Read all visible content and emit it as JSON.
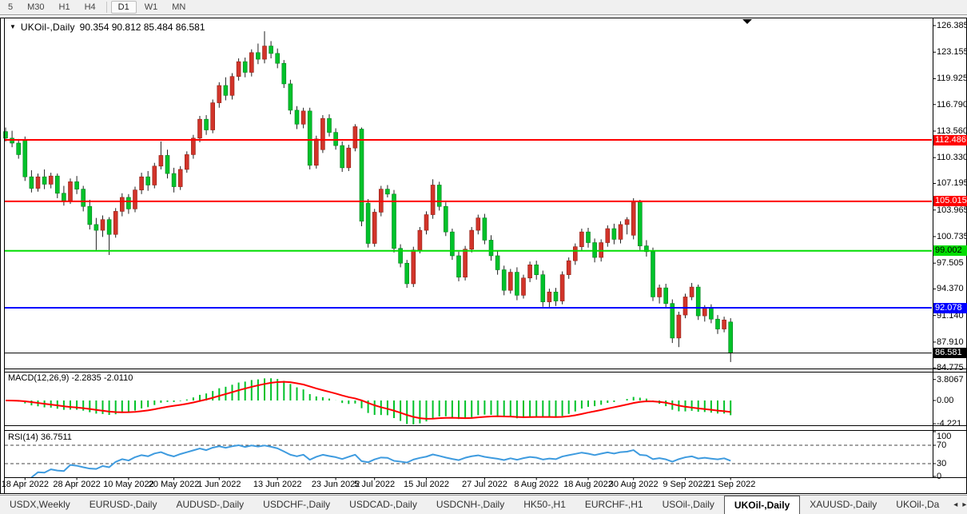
{
  "toolbar": {
    "timeframes": [
      "5",
      "M30",
      "H1",
      "H4",
      "D1",
      "W1",
      "MN"
    ],
    "active_timeframe": "D1"
  },
  "chart": {
    "collapse_icon": "▼",
    "symbol_label": "UKOil-,Daily",
    "ohlc_label": "90.354 90.812 85.484 86.581"
  },
  "chart_data": {
    "type": "candlestick",
    "symbol": "UKOil-,Daily",
    "timeframe": "Daily",
    "ohlc_current": {
      "open": "90.354",
      "high": "90.812",
      "low": "85.484",
      "close": "86.581"
    },
    "up_color": "#d2342a",
    "down_color": "#00c22a",
    "price_axis_ticks": [
      "126.385",
      "123.155",
      "119.925",
      "116.790",
      "113.560",
      "110.330",
      "107.195",
      "103.965",
      "100.735",
      "97.505",
      "94.370",
      "91.140",
      "87.910",
      "84.775"
    ],
    "hlines": [
      {
        "price": 112.486,
        "label": "112.486",
        "color": "#ff0000",
        "text_color": "#ffffff",
        "width": 2
      },
      {
        "price": 105.015,
        "label": "105.015",
        "color": "#ff0000",
        "text_color": "#ffffff",
        "width": 2
      },
      {
        "price": 99.002,
        "label": "99.002",
        "color": "#00dd00",
        "text_color": "#000000",
        "width": 2
      },
      {
        "price": 92.078,
        "label": "92.078",
        "color": "#0000ff",
        "text_color": "#ffffff",
        "width": 2
      },
      {
        "price": 86.581,
        "label": "86.581",
        "color": "#000000",
        "text_color": "#ffffff",
        "width": 1
      }
    ],
    "date_ticks": [
      {
        "label": "18 Apr 2022",
        "index": 3
      },
      {
        "label": "28 Apr 2022",
        "index": 11
      },
      {
        "label": "10 May 2022",
        "index": 19
      },
      {
        "label": "20 May 2022",
        "index": 26
      },
      {
        "label": "1 Jun 2022",
        "index": 33
      },
      {
        "label": "13 Jun 2022",
        "index": 42
      },
      {
        "label": "23 Jun 2022",
        "index": 51
      },
      {
        "label": "5 Jul 2022",
        "index": 57
      },
      {
        "label": "15 Jul 2022",
        "index": 65
      },
      {
        "label": "27 Jul 2022",
        "index": 74
      },
      {
        "label": "8 Aug 2022",
        "index": 82
      },
      {
        "label": "18 Aug 2022",
        "index": 90
      },
      {
        "label": "30 Aug 2022",
        "index": 97
      },
      {
        "label": "9 Sep 2022",
        "index": 105
      },
      {
        "label": "21 Sep 2022",
        "index": 112
      }
    ],
    "candles": [
      [
        113.5,
        114.0,
        112.3,
        112.7
      ],
      [
        112.7,
        113.6,
        111.6,
        112.1
      ],
      [
        112.1,
        112.6,
        110.2,
        110.7
      ],
      [
        112.4,
        112.9,
        107.5,
        108.0
      ],
      [
        108.0,
        108.8,
        106.1,
        106.6
      ],
      [
        106.6,
        108.4,
        106.2,
        108.0
      ],
      [
        108.0,
        108.9,
        106.5,
        107.1
      ],
      [
        107.1,
        108.5,
        106.6,
        108.1
      ],
      [
        108.1,
        108.4,
        105.4,
        106.0
      ],
      [
        106.0,
        106.9,
        104.5,
        105.1
      ],
      [
        105.1,
        107.8,
        104.7,
        107.4
      ],
      [
        107.4,
        108.1,
        105.9,
        106.5
      ],
      [
        106.5,
        106.9,
        103.8,
        104.4
      ],
      [
        104.4,
        105.2,
        101.6,
        102.2
      ],
      [
        102.2,
        103.0,
        99.1,
        101.5
      ],
      [
        101.5,
        103.3,
        100.7,
        102.8
      ],
      [
        102.8,
        103.1,
        98.5,
        101.0
      ],
      [
        101.0,
        104.2,
        100.6,
        103.8
      ],
      [
        103.8,
        106.0,
        103.2,
        105.5
      ],
      [
        105.5,
        105.9,
        103.5,
        104.1
      ],
      [
        104.1,
        106.8,
        103.7,
        106.4
      ],
      [
        106.4,
        108.5,
        105.9,
        108.0
      ],
      [
        108.0,
        108.7,
        106.3,
        107.0
      ],
      [
        107.0,
        109.7,
        106.6,
        109.3
      ],
      [
        109.3,
        112.3,
        108.9,
        110.6
      ],
      [
        110.6,
        111.3,
        107.8,
        108.4
      ],
      [
        108.4,
        109.1,
        106.1,
        106.8
      ],
      [
        106.8,
        109.3,
        106.4,
        108.9
      ],
      [
        108.9,
        111.1,
        108.5,
        110.7
      ],
      [
        110.7,
        113.1,
        110.2,
        112.7
      ],
      [
        112.7,
        115.4,
        112.2,
        115.0
      ],
      [
        115.0,
        115.5,
        113.1,
        113.7
      ],
      [
        113.7,
        117.4,
        113.3,
        117.0
      ],
      [
        117.0,
        119.5,
        116.4,
        119.1
      ],
      [
        119.1,
        120.1,
        117.3,
        117.9
      ],
      [
        117.9,
        120.6,
        117.4,
        120.2
      ],
      [
        120.2,
        122.4,
        119.7,
        122.0
      ],
      [
        122.0,
        122.5,
        120.1,
        120.7
      ],
      [
        120.7,
        123.5,
        120.2,
        123.1
      ],
      [
        123.1,
        124.2,
        121.7,
        122.3
      ],
      [
        122.3,
        125.7,
        121.8,
        123.9
      ],
      [
        123.9,
        124.5,
        122.4,
        123.0
      ],
      [
        123.0,
        123.6,
        121.2,
        121.8
      ],
      [
        121.8,
        122.2,
        118.8,
        119.3
      ],
      [
        119.3,
        119.8,
        115.6,
        116.1
      ],
      [
        116.1,
        116.6,
        113.8,
        114.4
      ],
      [
        114.4,
        116.4,
        113.9,
        116.0
      ],
      [
        116.0,
        116.4,
        108.9,
        109.4
      ],
      [
        109.4,
        113.0,
        109.0,
        112.6
      ],
      [
        111.3,
        115.5,
        110.9,
        115.1
      ],
      [
        115.1,
        115.6,
        112.9,
        113.4
      ],
      [
        113.4,
        113.9,
        111.3,
        111.8
      ],
      [
        111.8,
        112.3,
        108.6,
        109.1
      ],
      [
        109.1,
        111.9,
        108.7,
        111.5
      ],
      [
        111.5,
        114.4,
        111.1,
        114.1
      ],
      [
        113.8,
        114.0,
        102.0,
        102.6
      ],
      [
        104.8,
        105.3,
        99.4,
        99.9
      ],
      [
        99.9,
        104.1,
        99.5,
        103.7
      ],
      [
        103.7,
        106.9,
        103.2,
        106.5
      ],
      [
        106.5,
        107.0,
        105.5,
        105.9
      ],
      [
        105.9,
        106.4,
        98.8,
        99.3
      ],
      [
        99.3,
        99.8,
        97.0,
        97.5
      ],
      [
        97.5,
        97.9,
        94.5,
        95.0
      ],
      [
        95.0,
        99.5,
        94.6,
        99.1
      ],
      [
        99.1,
        101.9,
        98.7,
        101.5
      ],
      [
        101.5,
        103.8,
        101.0,
        103.4
      ],
      [
        103.4,
        107.7,
        102.9,
        107.0
      ],
      [
        107.0,
        107.4,
        103.9,
        104.4
      ],
      [
        104.4,
        104.9,
        100.8,
        101.3
      ],
      [
        101.3,
        101.7,
        97.9,
        98.4
      ],
      [
        98.4,
        98.9,
        95.3,
        95.8
      ],
      [
        95.8,
        99.6,
        95.4,
        99.2
      ],
      [
        99.2,
        101.9,
        98.8,
        101.5
      ],
      [
        101.5,
        103.4,
        101.0,
        103.0
      ],
      [
        103.0,
        103.5,
        99.8,
        100.3
      ],
      [
        100.3,
        100.9,
        97.8,
        98.4
      ],
      [
        98.4,
        99.0,
        96.1,
        96.7
      ],
      [
        96.7,
        97.2,
        93.6,
        94.2
      ],
      [
        94.2,
        96.8,
        93.8,
        96.4
      ],
      [
        96.4,
        97.0,
        93.0,
        93.6
      ],
      [
        93.6,
        96.1,
        93.2,
        95.7
      ],
      [
        95.7,
        97.7,
        95.2,
        97.3
      ],
      [
        97.3,
        97.8,
        95.5,
        96.1
      ],
      [
        96.1,
        96.6,
        92.2,
        92.8
      ],
      [
        92.8,
        94.4,
        92.1,
        94.0
      ],
      [
        94.0,
        94.5,
        92.3,
        92.9
      ],
      [
        92.9,
        96.5,
        92.5,
        96.1
      ],
      [
        96.1,
        98.2,
        95.6,
        97.8
      ],
      [
        97.8,
        99.9,
        97.3,
        99.5
      ],
      [
        99.5,
        101.7,
        99.0,
        101.3
      ],
      [
        101.3,
        101.8,
        99.4,
        100.0
      ],
      [
        100.0,
        100.5,
        97.6,
        98.2
      ],
      [
        98.2,
        100.4,
        97.7,
        100.0
      ],
      [
        100.0,
        102.1,
        99.5,
        101.7
      ],
      [
        101.7,
        102.3,
        99.8,
        100.4
      ],
      [
        100.4,
        102.6,
        99.9,
        102.2
      ],
      [
        102.2,
        103.1,
        101.0,
        102.8
      ],
      [
        100.9,
        105.4,
        100.4,
        104.9
      ],
      [
        104.9,
        105.2,
        99.1,
        99.6
      ],
      [
        99.6,
        100.3,
        98.3,
        98.9
      ],
      [
        98.9,
        99.4,
        92.9,
        93.4
      ],
      [
        93.4,
        94.9,
        92.6,
        94.5
      ],
      [
        94.5,
        95.0,
        92.0,
        92.6
      ],
      [
        92.6,
        93.1,
        87.8,
        88.4
      ],
      [
        88.4,
        91.6,
        87.3,
        91.2
      ],
      [
        91.2,
        93.8,
        90.8,
        93.4
      ],
      [
        93.4,
        95.1,
        93.0,
        94.6
      ],
      [
        94.6,
        94.9,
        90.6,
        91.1
      ],
      [
        91.1,
        92.4,
        90.4,
        92.0
      ],
      [
        92.0,
        92.5,
        90.2,
        90.7
      ],
      [
        90.7,
        91.2,
        88.9,
        89.5
      ],
      [
        89.5,
        91.0,
        89.1,
        90.6
      ],
      [
        90.354,
        90.812,
        85.484,
        86.581
      ]
    ],
    "macd": {
      "label": "MACD(12,26,9) -2.2835 -2.0110",
      "params": [
        12,
        26,
        9
      ],
      "value": "-2.2835",
      "signal_value": "-2.0110",
      "histogram_color": "#00c22a",
      "signal_color": "#ff0000",
      "scale_labels": [
        {
          "label": "3.8067",
          "value": 3.8067
        },
        {
          "label": "0.00",
          "value": 0
        },
        {
          "label": "-4.221",
          "value": -4.221
        }
      ]
    },
    "rsi": {
      "label": "RSI(14) 36.7511",
      "period": 14,
      "value": "36.7511",
      "line_color": "#3e9bdf",
      "levels": [
        70,
        30
      ],
      "scale_labels": [
        {
          "label": "100",
          "value": 100
        },
        {
          "label": "70",
          "value": 70
        },
        {
          "label": "30",
          "value": 30
        },
        {
          "label": "0",
          "value": 0
        }
      ]
    }
  },
  "tabs": {
    "items": [
      "USDX,Weekly",
      "EURUSD-,Daily",
      "AUDUSD-,Daily",
      "USDCHF-,Daily",
      "USDCAD-,Daily",
      "USDCNH-,Daily",
      "HK50-,H1",
      "EURCHF-,H1",
      "USOil-,Daily",
      "UKOil-,Daily",
      "XAUUSD-,Daily",
      "UKOil-,Da"
    ],
    "active": "UKOil-,Daily",
    "scroll_left_icon": "◂",
    "scroll_right_icon": "▸"
  }
}
